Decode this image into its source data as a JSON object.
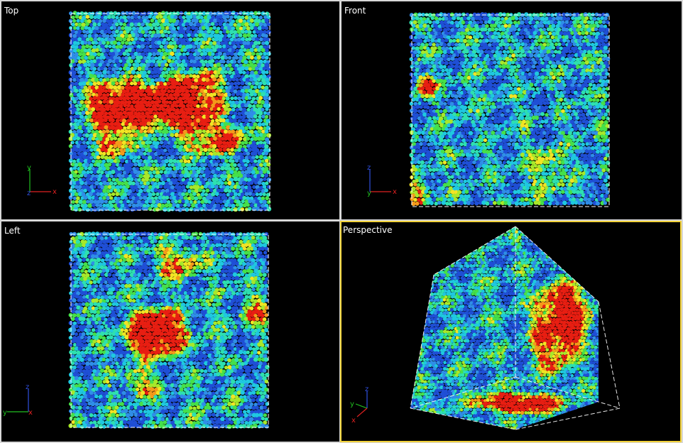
{
  "viewports": [
    {
      "id": "top",
      "label": "Top",
      "axes": {
        "horizontal": "x",
        "vertical": "y",
        "out": "z"
      }
    },
    {
      "id": "front",
      "label": "Front",
      "axes": {
        "horizontal": "x",
        "vertical": "z",
        "out": "y"
      }
    },
    {
      "id": "left",
      "label": "Left",
      "axes": {
        "horizontal": "y",
        "vertical": "z",
        "out": "x"
      }
    },
    {
      "id": "perspective",
      "label": "Perspective",
      "active": true,
      "axes": {
        "a": "z",
        "b": "y",
        "c": "x"
      }
    }
  ],
  "colors": {
    "active_border": "#f2d23a",
    "axis_x": "#e02020",
    "axis_y": "#20c020",
    "axis_z": "#3050e0",
    "particle_palette": [
      "#1f4fd6",
      "#2f8ee8",
      "#1fc8e0",
      "#2ee0b0",
      "#45e04a",
      "#a8e82a",
      "#f2e424",
      "#f59a1a",
      "#e81e12"
    ]
  }
}
